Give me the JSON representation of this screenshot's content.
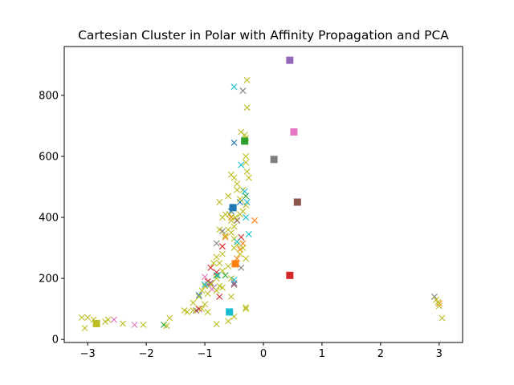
{
  "chart_data": {
    "type": "scatter",
    "title": "Cartesian Cluster in Polar with Affinity Propagation and PCA",
    "xlabel": "",
    "ylabel": "",
    "xlim": [
      -3.4,
      3.4
    ],
    "ylim": [
      -10,
      960
    ],
    "x_ticks": [
      -3,
      -2,
      -1,
      0,
      1,
      2,
      3
    ],
    "y_ticks": [
      0,
      200,
      400,
      600,
      800
    ],
    "grid": false,
    "legend": "none",
    "palette": [
      "#1f77b4",
      "#ff7f0e",
      "#2ca02c",
      "#d62728",
      "#9467bd",
      "#8c564b",
      "#e377c2",
      "#7f7f7f",
      "#bcbd22",
      "#17becf"
    ],
    "clusters": [
      {
        "color": "#1f77b4",
        "center": [
          -0.52,
          432
        ],
        "points": [
          [
            -0.5,
            645
          ],
          [
            -1.1,
            145
          ],
          [
            -0.4,
            450
          ],
          [
            -0.55,
            420
          ]
        ]
      },
      {
        "color": "#ff7f0e",
        "center": [
          -0.48,
          248
        ],
        "points": [
          [
            -0.65,
            335
          ],
          [
            -0.4,
            295
          ],
          [
            -0.35,
            315
          ],
          [
            -0.15,
            390
          ],
          [
            -0.45,
            265
          ],
          [
            -0.55,
            400
          ],
          [
            3.0,
            118
          ]
        ]
      },
      {
        "color": "#2ca02c",
        "center": [
          -0.32,
          650
        ],
        "points": [
          [
            -1.7,
            48
          ],
          [
            -0.65,
            210
          ],
          [
            -0.3,
            470
          ],
          [
            -0.8,
            210
          ]
        ]
      },
      {
        "color": "#d62728",
        "center": [
          0.45,
          210
        ],
        "points": [
          [
            -0.75,
            140
          ],
          [
            -0.8,
            220
          ],
          [
            -0.9,
            235
          ],
          [
            -0.7,
            305
          ],
          [
            -0.38,
            335
          ],
          [
            -1.1,
            100
          ],
          [
            -0.95,
            190
          ]
        ]
      },
      {
        "color": "#9467bd",
        "center": [
          0.45,
          915
        ],
        "points": [
          [
            -0.5,
            185
          ],
          [
            -0.95,
            180
          ],
          [
            -0.85,
            170
          ]
        ]
      },
      {
        "color": "#8c564b",
        "center": [
          0.58,
          450
        ],
        "points": [
          [
            -1.15,
            95
          ],
          [
            -0.45,
            390
          ],
          [
            -0.5,
            180
          ],
          [
            -0.9,
            185
          ]
        ]
      },
      {
        "color": "#e377c2",
        "center": [
          0.52,
          680
        ],
        "points": [
          [
            -2.55,
            65
          ],
          [
            -2.2,
            48
          ],
          [
            -1.0,
            205
          ],
          [
            -0.88,
            165
          ]
        ]
      },
      {
        "color": "#7f7f7f",
        "center": [
          0.18,
          590
        ],
        "points": [
          [
            -0.35,
            815
          ],
          [
            -0.8,
            315
          ],
          [
            -0.7,
            355
          ],
          [
            -0.38,
            235
          ],
          [
            2.92,
            140
          ]
        ]
      },
      {
        "color": "#bcbd22",
        "center": [
          -2.85,
          52
        ],
        "points": [
          [
            -0.28,
            850
          ],
          [
            -0.28,
            760
          ],
          [
            -0.3,
            660
          ],
          [
            -0.38,
            680
          ],
          [
            -0.32,
            670
          ],
          [
            -0.3,
            600
          ],
          [
            -0.3,
            580
          ],
          [
            -0.28,
            550
          ],
          [
            -0.25,
            530
          ],
          [
            -0.55,
            540
          ],
          [
            -0.5,
            530
          ],
          [
            -0.45,
            510
          ],
          [
            -0.45,
            490
          ],
          [
            -0.35,
            490
          ],
          [
            -0.4,
            460
          ],
          [
            -0.6,
            470
          ],
          [
            -0.75,
            450
          ],
          [
            -0.65,
            410
          ],
          [
            -0.7,
            400
          ],
          [
            -0.58,
            410
          ],
          [
            -0.48,
            400
          ],
          [
            -0.4,
            410
          ],
          [
            -0.35,
            420
          ],
          [
            -0.3,
            440
          ],
          [
            -0.55,
            390
          ],
          [
            -0.5,
            370
          ],
          [
            -0.6,
            360
          ],
          [
            -0.75,
            360
          ],
          [
            -0.65,
            340
          ],
          [
            -0.55,
            350
          ],
          [
            -0.5,
            330
          ],
          [
            -0.45,
            310
          ],
          [
            -0.35,
            300
          ],
          [
            -0.4,
            280
          ],
          [
            -0.5,
            300
          ],
          [
            -0.7,
            280
          ],
          [
            -0.8,
            270
          ],
          [
            -0.75,
            250
          ],
          [
            -0.85,
            250
          ],
          [
            -0.6,
            240
          ],
          [
            -0.3,
            265
          ],
          [
            -0.7,
            225
          ],
          [
            -0.8,
            200
          ],
          [
            -0.9,
            180
          ],
          [
            -1.0,
            175
          ],
          [
            -0.75,
            175
          ],
          [
            -0.7,
            170
          ],
          [
            -0.8,
            160
          ],
          [
            -0.95,
            150
          ],
          [
            -1.05,
            160
          ],
          [
            -1.1,
            140
          ],
          [
            -1.2,
            120
          ],
          [
            -1.0,
            115
          ],
          [
            -1.05,
            100
          ],
          [
            -1.2,
            95
          ],
          [
            -1.3,
            90
          ],
          [
            -1.35,
            95
          ],
          [
            -0.95,
            90
          ],
          [
            -0.55,
            140
          ],
          [
            -0.55,
            200
          ],
          [
            -0.3,
            100
          ],
          [
            -0.3,
            105
          ],
          [
            -0.6,
            60
          ],
          [
            -0.5,
            75
          ],
          [
            -0.8,
            50
          ],
          [
            -1.6,
            70
          ],
          [
            -1.65,
            45
          ],
          [
            -2.05,
            48
          ],
          [
            -2.4,
            52
          ],
          [
            -2.65,
            65
          ],
          [
            -2.7,
            58
          ],
          [
            -3.05,
            37
          ],
          [
            -3.1,
            72
          ],
          [
            -3.0,
            72
          ],
          [
            -2.9,
            65
          ],
          [
            2.95,
            130
          ],
          [
            3.0,
            110
          ],
          [
            3.05,
            70
          ],
          [
            2.98,
            122
          ]
        ]
      },
      {
        "color": "#17becf",
        "center": [
          -0.58,
          90
        ],
        "points": [
          [
            -0.5,
            828
          ],
          [
            -0.38,
            572
          ],
          [
            -0.28,
            450
          ],
          [
            -0.32,
            485
          ],
          [
            -0.3,
            400
          ],
          [
            -0.45,
            320
          ],
          [
            -0.25,
            345
          ],
          [
            -1.0,
            180
          ],
          [
            -0.78,
            210
          ],
          [
            -0.5,
            195
          ]
        ]
      }
    ]
  }
}
